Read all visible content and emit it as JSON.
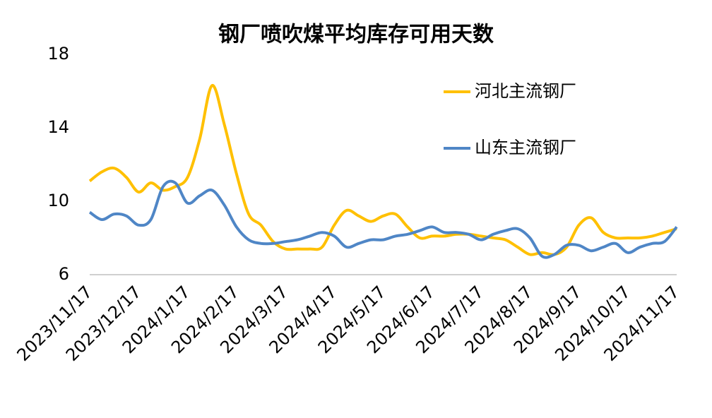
{
  "chart_data": {
    "type": "line",
    "title": "钢厂喷吹煤平均库存可用天数",
    "categories": [
      "2023/11/17",
      null,
      null,
      null,
      "2023/12/17",
      null,
      null,
      null,
      "2024/1/17",
      null,
      null,
      null,
      "2024/2/17",
      null,
      null,
      null,
      "2024/3/17",
      null,
      null,
      null,
      "2024/4/17",
      null,
      null,
      null,
      "2024/5/17",
      null,
      null,
      null,
      "2024/6/17",
      null,
      null,
      null,
      "2024/7/17",
      null,
      null,
      null,
      "2024/8/17",
      null,
      null,
      null,
      "2024/9/17",
      null,
      null,
      null,
      "2024/10/17",
      null,
      null,
      null,
      "2024/11/17"
    ],
    "series": [
      {
        "name": "河北主流钢厂",
        "color": "#ffc000",
        "values": [
          11.1,
          11.6,
          11.8,
          11.3,
          10.5,
          11.0,
          10.6,
          10.8,
          11.3,
          13.4,
          16.3,
          14.2,
          11.5,
          9.3,
          8.7,
          7.8,
          7.4,
          7.4,
          7.4,
          7.5,
          8.7,
          9.5,
          9.2,
          8.9,
          9.2,
          9.3,
          8.6,
          8.0,
          8.1,
          8.1,
          8.2,
          8.2,
          8.1,
          8.0,
          7.9,
          7.5,
          7.1,
          7.2,
          7.1,
          7.5,
          8.7,
          9.1,
          8.3,
          8.0,
          8.0,
          8.0,
          8.1,
          8.3,
          8.5
        ]
      },
      {
        "name": "山东主流钢厂",
        "color": "#4f86c6",
        "values": [
          9.4,
          9.0,
          9.3,
          9.2,
          8.7,
          9.0,
          10.8,
          11.0,
          9.9,
          10.3,
          10.6,
          9.8,
          8.6,
          7.9,
          7.7,
          7.7,
          7.8,
          7.9,
          8.1,
          8.3,
          8.1,
          7.5,
          7.7,
          7.9,
          7.9,
          8.1,
          8.2,
          8.4,
          8.6,
          8.3,
          8.3,
          8.2,
          7.9,
          8.2,
          8.4,
          8.5,
          8.0,
          7.0,
          7.1,
          7.6,
          7.6,
          7.3,
          7.5,
          7.7,
          7.2,
          7.5,
          7.7,
          7.8,
          8.6
        ]
      }
    ],
    "ylim": [
      6,
      18
    ],
    "yticks": [
      6,
      10,
      14,
      18
    ]
  }
}
